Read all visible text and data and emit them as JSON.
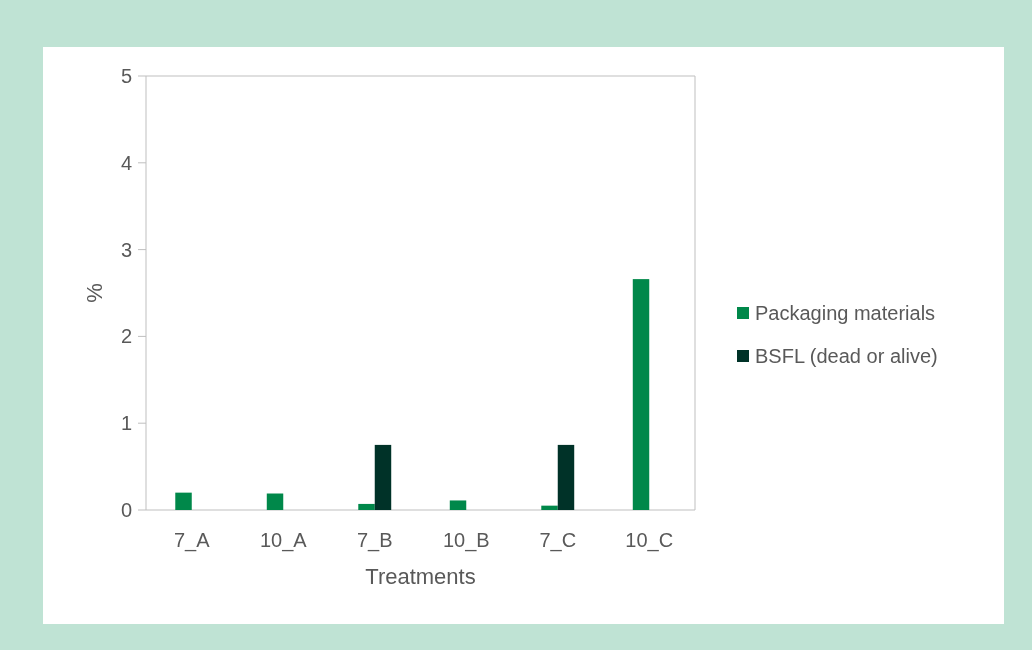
{
  "chart_data": {
    "type": "bar",
    "xlabel": "Treatments",
    "ylabel": "%",
    "categories": [
      "7_A",
      "10_A",
      "7_B",
      "10_B",
      "7_C",
      "10_C"
    ],
    "series": [
      {
        "name": "Packaging materials",
        "color": "#00884a",
        "values": [
          0.2,
          0.19,
          0.07,
          0.11,
          0.05,
          2.66
        ]
      },
      {
        "name": "BSFL (dead or alive)",
        "color": "#003228",
        "values": [
          0,
          0,
          0.75,
          0,
          0.75,
          0
        ]
      }
    ],
    "ylim": [
      0,
      5
    ],
    "yticks": [
      0,
      1,
      2,
      3,
      4,
      5
    ],
    "grid": false,
    "legend": "right"
  }
}
